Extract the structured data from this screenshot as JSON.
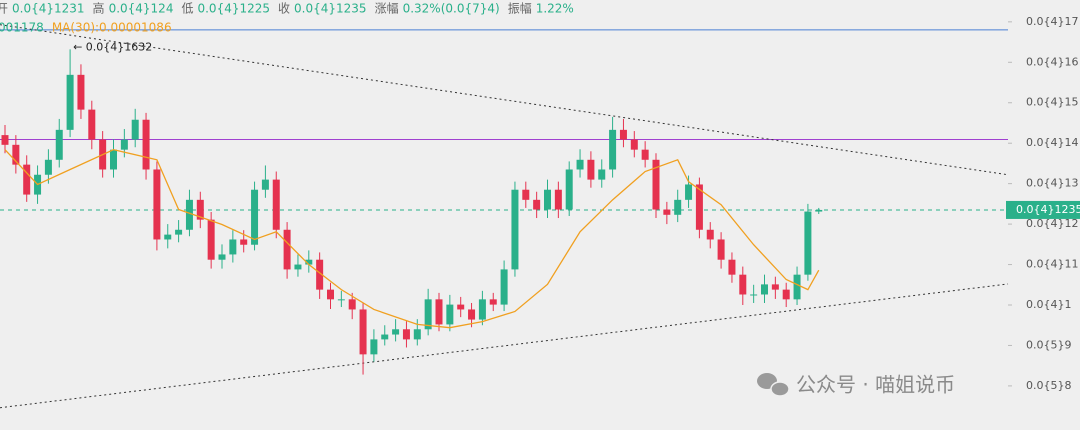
{
  "chart_data": {
    "type": "candlestick",
    "header": [
      [
        "开",
        "0.0{4}1231"
      ],
      [
        "高",
        "0.0{4}124"
      ],
      [
        "低",
        "0.0{4}1225"
      ],
      [
        "收",
        "0.0{4}1235"
      ],
      [
        "涨幅",
        "0.32%(0.0{7}4)"
      ],
      [
        "振幅",
        "1.22%"
      ]
    ],
    "ma_header": [
      {
        "text": "001178",
        "color": "#2ab08a"
      },
      {
        "text": "MA(30):0.00001086",
        "color": "#f0a020"
      }
    ],
    "ylim": [
      6.91e-06,
      1.754e-05
    ],
    "yticks": [
      {
        "value": 1.7e-05,
        "label": "0.0{4}17"
      },
      {
        "value": 1.6e-05,
        "label": "0.0{4}16"
      },
      {
        "value": 1.5e-05,
        "label": "0.0{4}15"
      },
      {
        "value": 1.4e-05,
        "label": "0.0{4}14"
      },
      {
        "value": 1.3e-05,
        "label": "0.0{4}13"
      },
      {
        "value": 1.2e-05,
        "label": "0.0{4}12"
      },
      {
        "value": 1.1e-05,
        "label": "0.0{4}11"
      },
      {
        "value": 1e-05,
        "label": "0.0{4}1"
      },
      {
        "value": 9e-06,
        "label": "0.0{5}9"
      },
      {
        "value": 8e-06,
        "label": "0.0{5}8"
      }
    ],
    "up_color": "#2ab08a",
    "down_color": "#e5324f",
    "open": [
      1.42e-05,
      1.396e-05,
      1.347e-05,
      1.273e-05,
      1.322e-05,
      1.359e-05,
      1.433e-05,
      1.569e-05,
      1.483e-05,
      1.409e-05,
      1.335e-05,
      1.384e-05,
      1.409e-05,
      1.458e-05,
      1.335e-05,
      1.162e-05,
      1.174e-05,
      1.186e-05,
      1.26e-05,
      1.211e-05,
      1.112e-05,
      1.125e-05,
      1.162e-05,
      1.149e-05,
      1.285e-05,
      1.31e-05,
      1.186e-05,
      1.088e-05,
      1.1e-05,
      1.112e-05,
      1.038e-05,
      1.014e-05,
      1.014e-05,
      9.89e-06,
      8.78e-06,
      9.15e-06,
      9.27e-06,
      9.4e-06,
      9.15e-06,
      9.4e-06,
      1.014e-05,
      9.52e-06,
      1.001e-05,
      9.89e-06,
      9.64e-06,
      1.014e-05,
      1.001e-05,
      1.088e-05,
      1.285e-05,
      1.26e-05,
      1.236e-05,
      1.285e-05,
      1.236e-05,
      1.335e-05,
      1.359e-05,
      1.31e-05,
      1.335e-05,
      1.433e-05,
      1.409e-05,
      1.384e-05,
      1.359e-05,
      1.236e-05,
      1.223e-05,
      1.26e-05,
      1.298e-05,
      1.186e-05,
      1.162e-05,
      1.112e-05,
      1.075e-05,
      1.026e-05,
      1.026e-05,
      1.051e-05,
      1.038e-05,
      1.014e-05,
      1.075e-05,
      1.231e-05
    ],
    "high": [
      1.445e-05,
      1.42e-05,
      1.37e-05,
      1.345e-05,
      1.385e-05,
      1.46e-05,
      1.632e-05,
      1.595e-05,
      1.505e-05,
      1.43e-05,
      1.41e-05,
      1.435e-05,
      1.485e-05,
      1.475e-05,
      1.355e-05,
      1.2e-05,
      1.21e-05,
      1.285e-05,
      1.28e-05,
      1.23e-05,
      1.15e-05,
      1.185e-05,
      1.185e-05,
      1.305e-05,
      1.345e-05,
      1.33e-05,
      1.205e-05,
      1.125e-05,
      1.135e-05,
      1.13e-05,
      1.055e-05,
      1.035e-05,
      1.03e-05,
      1.005e-05,
      9.4e-06,
      9.5e-06,
      9.65e-06,
      9.6e-06,
      9.65e-06,
      1.04e-05,
      1.03e-05,
      1.025e-05,
      1.02e-05,
      1.005e-05,
      1.035e-05,
      1.03e-05,
      1.11e-05,
      1.305e-05,
      1.305e-05,
      1.28e-05,
      1.31e-05,
      1.305e-05,
      1.355e-05,
      1.385e-05,
      1.38e-05,
      1.36e-05,
      1.465e-05,
      1.46e-05,
      1.43e-05,
      1.405e-05,
      1.375e-05,
      1.255e-05,
      1.285e-05,
      1.32e-05,
      1.315e-05,
      1.205e-05,
      1.18e-05,
      1.13e-05,
      1.095e-05,
      1.05e-05,
      1.075e-05,
      1.07e-05,
      1.055e-05,
      1.095e-05,
      1.25e-05,
      1.24e-05
    ],
    "low": [
      1.375e-05,
      1.325e-05,
      1.255e-05,
      1.25e-05,
      1.3e-05,
      1.34e-05,
      1.415e-05,
      1.46e-05,
      1.385e-05,
      1.315e-05,
      1.315e-05,
      1.365e-05,
      1.39e-05,
      1.31e-05,
      1.135e-05,
      1.14e-05,
      1.155e-05,
      1.17e-05,
      1.19e-05,
      1.09e-05,
      1.09e-05,
      1.105e-05,
      1.13e-05,
      1.135e-05,
      1.265e-05,
      1.165e-05,
      1.065e-05,
      1.07e-05,
      1.08e-05,
      1.015e-05,
      9.9e-06,
      9.95e-06,
      9.65e-06,
      8.28e-06,
      8.6e-06,
      9e-06,
      9.1e-06,
      8.95e-06,
      9e-06,
      9.25e-06,
      9.35e-06,
      9.35e-06,
      9.7e-06,
      9.45e-06,
      9.5e-06,
      9.85e-06,
      9.85e-06,
      1.07e-05,
      1.24e-05,
      1.215e-05,
      1.215e-05,
      1.215e-05,
      1.22e-05,
      1.315e-05,
      1.29e-05,
      1.29e-05,
      1.315e-05,
      1.39e-05,
      1.365e-05,
      1.34e-05,
      1.215e-05,
      1.2e-05,
      1.205e-05,
      1.24e-05,
      1.165e-05,
      1.14e-05,
      1.09e-05,
      1.055e-05,
      1e-05,
      1.005e-05,
      1.005e-05,
      1.015e-05,
      9.95e-06,
      1e-05,
      1.06e-05,
      1.225e-05
    ],
    "close": [
      1.396e-05,
      1.347e-05,
      1.273e-05,
      1.322e-05,
      1.359e-05,
      1.433e-05,
      1.569e-05,
      1.483e-05,
      1.409e-05,
      1.335e-05,
      1.384e-05,
      1.409e-05,
      1.458e-05,
      1.335e-05,
      1.162e-05,
      1.174e-05,
      1.186e-05,
      1.26e-05,
      1.211e-05,
      1.112e-05,
      1.125e-05,
      1.162e-05,
      1.149e-05,
      1.285e-05,
      1.31e-05,
      1.186e-05,
      1.088e-05,
      1.1e-05,
      1.112e-05,
      1.038e-05,
      1.014e-05,
      1.014e-05,
      9.89e-06,
      8.78e-06,
      9.15e-06,
      9.27e-06,
      9.4e-06,
      9.15e-06,
      9.4e-06,
      1.014e-05,
      9.52e-06,
      1.001e-05,
      9.89e-06,
      9.64e-06,
      1.014e-05,
      1.001e-05,
      1.088e-05,
      1.285e-05,
      1.26e-05,
      1.236e-05,
      1.285e-05,
      1.236e-05,
      1.335e-05,
      1.359e-05,
      1.31e-05,
      1.335e-05,
      1.433e-05,
      1.409e-05,
      1.384e-05,
      1.359e-05,
      1.236e-05,
      1.223e-05,
      1.26e-05,
      1.298e-05,
      1.186e-05,
      1.162e-05,
      1.112e-05,
      1.075e-05,
      1.026e-05,
      1.026e-05,
      1.051e-05,
      1.038e-05,
      1.014e-05,
      1.075e-05,
      1.231e-05,
      1.235e-05
    ],
    "ma": {
      "color": "#f0a020",
      "x": [
        0,
        3,
        6,
        10,
        14,
        16,
        20,
        23,
        25,
        28,
        31,
        34,
        38,
        41,
        44,
        47,
        50,
        53,
        56,
        59,
        62,
        63,
        66,
        69,
        72,
        74,
        75
      ],
      "values": [
        1.384e-05,
        1.298e-05,
        1.335e-05,
        1.384e-05,
        1.359e-05,
        1.236e-05,
        1.199e-05,
        1.162e-05,
        1.181e-05,
        1.1e-05,
        1.038e-05,
        9.89e-06,
        9.52e-06,
        9.44e-06,
        9.59e-06,
        9.84e-06,
        1.051e-05,
        1.181e-05,
        1.26e-05,
        1.33e-05,
        1.359e-05,
        1.305e-05,
        1.248e-05,
        1.149e-05,
        1.063e-05,
        1.038e-05,
        1.086e-05
      ]
    },
    "hlines": [
      {
        "value": 1.68e-05,
        "color": "#4a7fd4"
      },
      {
        "value": 1.409e-05,
        "color": "#a040d0"
      }
    ],
    "trendlines": [
      {
        "values": [
          1.693e-05,
          1.322e-05
        ]
      },
      {
        "values": [
          7.46e-06,
          1.052e-05
        ]
      }
    ],
    "price": {
      "value": 1.235e-05,
      "label": "0.0{4}1235",
      "color": "#2ab08a"
    },
    "high_annotation": {
      "value": 1.632e-05,
      "label": "← 0.0{4}1632",
      "index": 6
    },
    "watermark": "公众号 · 喵姐说币"
  }
}
